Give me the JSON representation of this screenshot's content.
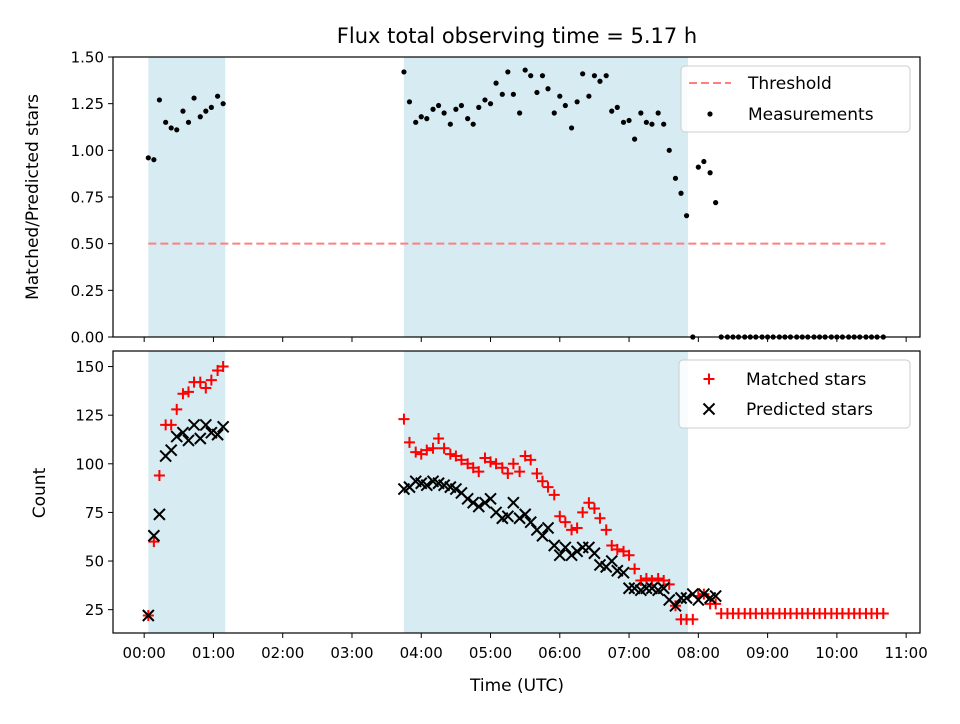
{
  "figure": {
    "title": "Flux total observing time = 5.17 h",
    "xlabel": "Time (UTC)",
    "colors": {
      "shade": "#add8e6",
      "threshold": "#ff7f7f",
      "measurement": "#000000",
      "matched": "#ff0000",
      "predicted": "#000000"
    }
  },
  "chart_data": [
    {
      "type": "scatter",
      "name": "ratio",
      "ylabel": "Matched/Predicted stars",
      "xlim": [
        -0.45,
        11.2
      ],
      "ylim": [
        0,
        1.5
      ],
      "yticks": [
        "0.00",
        "0.25",
        "0.50",
        "0.75",
        "1.00",
        "1.25",
        "1.50"
      ],
      "xticks": [
        0,
        1,
        2,
        3,
        4,
        5,
        6,
        7,
        8,
        9,
        10,
        11
      ],
      "shaded_ranges": [
        [
          0.06,
          1.17
        ],
        [
          3.75,
          7.85
        ]
      ],
      "threshold": {
        "label": "Threshold",
        "value": 0.5,
        "x_range": [
          0.06,
          10.7
        ]
      },
      "legend": {
        "position": "top-right",
        "entries": [
          "Threshold",
          "Measurements"
        ]
      },
      "measurements": {
        "name": "Measurements",
        "x": [
          0.06,
          0.14,
          0.22,
          0.31,
          0.39,
          0.47,
          0.56,
          0.64,
          0.72,
          0.81,
          0.89,
          0.97,
          1.06,
          1.14,
          3.75,
          3.83,
          3.92,
          4.0,
          4.08,
          4.17,
          4.25,
          4.33,
          4.42,
          4.5,
          4.58,
          4.67,
          4.75,
          4.83,
          4.92,
          5.0,
          5.08,
          5.17,
          5.25,
          5.33,
          5.42,
          5.5,
          5.58,
          5.67,
          5.75,
          5.83,
          5.92,
          6.0,
          6.08,
          6.17,
          6.25,
          6.33,
          6.42,
          6.5,
          6.58,
          6.67,
          6.75,
          6.83,
          6.92,
          7.0,
          7.08,
          7.17,
          7.25,
          7.33,
          7.42,
          7.5,
          7.58,
          7.67,
          7.75,
          7.83,
          7.92,
          8.0,
          8.08,
          8.17,
          8.25,
          8.33,
          8.42,
          8.5,
          8.58,
          8.67,
          8.75,
          8.83,
          8.92,
          9.0,
          9.08,
          9.17,
          9.25,
          9.33,
          9.42,
          9.5,
          9.58,
          9.67,
          9.75,
          9.83,
          9.92,
          10.0,
          10.08,
          10.17,
          10.25,
          10.33,
          10.42,
          10.5,
          10.58,
          10.67
        ],
        "y": [
          0.96,
          0.95,
          1.27,
          1.15,
          1.12,
          1.11,
          1.21,
          1.15,
          1.28,
          1.18,
          1.21,
          1.23,
          1.29,
          1.25,
          1.42,
          1.26,
          1.15,
          1.18,
          1.17,
          1.22,
          1.24,
          1.2,
          1.14,
          1.22,
          1.24,
          1.17,
          1.14,
          1.23,
          1.27,
          1.25,
          1.36,
          1.3,
          1.42,
          1.3,
          1.2,
          1.43,
          1.4,
          1.31,
          1.4,
          1.33,
          1.2,
          1.29,
          1.24,
          1.12,
          1.26,
          1.41,
          1.29,
          1.4,
          1.37,
          1.4,
          1.21,
          1.23,
          1.15,
          1.16,
          1.06,
          1.2,
          1.15,
          1.14,
          1.2,
          1.14,
          1.0,
          0.85,
          0.77,
          0.65,
          0.0,
          0.91,
          0.94,
          0.88,
          0.72,
          0,
          0,
          0,
          0,
          0,
          0,
          0,
          0,
          0,
          0,
          0,
          0,
          0,
          0,
          0,
          0,
          0,
          0,
          0,
          0,
          0,
          0,
          0,
          0,
          0,
          0,
          0,
          0,
          0
        ]
      }
    },
    {
      "type": "scatter",
      "name": "counts",
      "ylabel": "Count",
      "xlim": [
        -0.45,
        11.2
      ],
      "ylim": [
        13,
        158
      ],
      "yticks": [
        "25",
        "50",
        "75",
        "100",
        "125",
        "150"
      ],
      "xticks": [
        "00:00",
        "01:00",
        "02:00",
        "03:00",
        "04:00",
        "05:00",
        "06:00",
        "07:00",
        "08:00",
        "09:00",
        "10:00",
        "11:00"
      ],
      "shaded_ranges": [
        [
          0.06,
          1.17
        ],
        [
          3.75,
          7.85
        ]
      ],
      "legend": {
        "position": "top-right",
        "entries": [
          "Matched stars",
          "Predicted stars"
        ]
      },
      "series": [
        {
          "name": "Matched stars",
          "marker": "+",
          "x": [
            0.06,
            0.14,
            0.22,
            0.31,
            0.39,
            0.47,
            0.56,
            0.64,
            0.72,
            0.81,
            0.89,
            0.97,
            1.06,
            1.14,
            3.75,
            3.83,
            3.92,
            4.0,
            4.08,
            4.17,
            4.25,
            4.33,
            4.42,
            4.5,
            4.58,
            4.67,
            4.75,
            4.83,
            4.92,
            5.0,
            5.08,
            5.17,
            5.25,
            5.33,
            5.42,
            5.5,
            5.58,
            5.67,
            5.75,
            5.83,
            5.92,
            6.0,
            6.08,
            6.17,
            6.25,
            6.33,
            6.42,
            6.5,
            6.58,
            6.67,
            6.75,
            6.83,
            6.92,
            7.0,
            7.08,
            7.17,
            7.25,
            7.33,
            7.42,
            7.5,
            7.58,
            7.67,
            7.75,
            7.83,
            7.92,
            8.0,
            8.08,
            8.17,
            8.25,
            8.33,
            8.42,
            8.5,
            8.58,
            8.67,
            8.75,
            8.83,
            8.92,
            9.0,
            9.08,
            9.17,
            9.25,
            9.33,
            9.42,
            9.5,
            9.58,
            9.67,
            9.75,
            9.83,
            9.92,
            10.0,
            10.08,
            10.17,
            10.25,
            10.33,
            10.42,
            10.5,
            10.58,
            10.67
          ],
          "y": [
            22,
            60,
            94,
            120,
            120,
            128,
            136,
            137,
            142,
            142,
            139,
            143,
            148,
            150,
            123,
            111,
            106,
            105,
            107,
            108,
            113,
            108,
            105,
            104,
            102,
            100,
            98,
            96,
            103,
            101,
            100,
            98,
            95,
            100,
            96,
            104,
            102,
            95,
            91,
            88,
            84,
            73,
            70,
            66,
            67,
            75,
            80,
            77,
            72,
            66,
            58,
            56,
            55,
            53,
            46,
            40,
            41,
            40,
            41,
            40,
            38,
            27,
            20,
            20,
            20,
            32,
            33,
            28,
            28,
            23,
            23,
            23,
            23,
            23,
            23,
            23,
            23,
            23,
            23,
            23,
            23,
            23,
            23,
            23,
            23,
            23,
            23,
            23,
            23,
            23,
            23,
            23,
            23,
            23,
            23,
            23,
            23,
            23
          ]
        },
        {
          "name": "Predicted stars",
          "marker": "x",
          "x": [
            0.06,
            0.14,
            0.22,
            0.31,
            0.39,
            0.47,
            0.56,
            0.64,
            0.72,
            0.81,
            0.89,
            0.97,
            1.06,
            1.14,
            3.75,
            3.83,
            3.92,
            4.0,
            4.08,
            4.17,
            4.25,
            4.33,
            4.42,
            4.5,
            4.58,
            4.67,
            4.75,
            4.83,
            4.92,
            5.0,
            5.08,
            5.17,
            5.25,
            5.33,
            5.42,
            5.5,
            5.58,
            5.67,
            5.75,
            5.83,
            5.92,
            6.0,
            6.08,
            6.17,
            6.25,
            6.33,
            6.42,
            6.5,
            6.58,
            6.67,
            6.75,
            6.83,
            6.92,
            7.0,
            7.08,
            7.17,
            7.25,
            7.33,
            7.42,
            7.5,
            7.58,
            7.67,
            7.75,
            7.83,
            7.92,
            8.0,
            8.08,
            8.17,
            8.25
          ],
          "y": [
            22,
            63,
            74,
            104,
            107,
            114,
            116,
            112,
            120,
            113,
            120,
            116,
            115,
            119,
            87,
            88,
            91,
            90,
            89,
            91,
            90,
            89,
            88,
            87,
            85,
            82,
            80,
            78,
            80,
            82,
            75,
            72,
            73,
            80,
            72,
            74,
            70,
            66,
            63,
            67,
            58,
            53,
            57,
            53,
            55,
            57,
            57,
            54,
            48,
            47,
            50,
            45,
            44,
            36,
            36,
            35,
            36,
            36,
            35,
            36,
            30,
            27,
            31,
            31,
            33,
            30,
            33,
            31,
            32
          ]
        }
      ]
    }
  ]
}
